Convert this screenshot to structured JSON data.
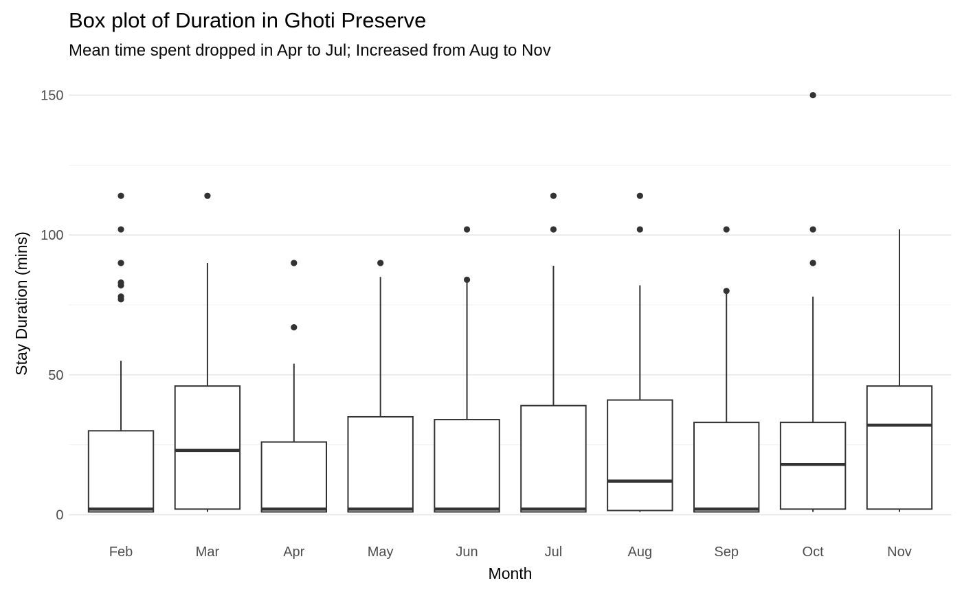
{
  "chart_data": {
    "type": "boxplot",
    "title": "Box plot of Duration in Ghoti Preserve",
    "subtitle": "Mean time spent dropped in Apr to Jul; Increased from Aug to Nov",
    "xlabel": "Month",
    "ylabel": "Stay Duration (mins)",
    "ylim": [
      0,
      150
    ],
    "y_major_ticks": [
      0,
      50,
      100,
      150
    ],
    "y_minor_gridlines": [
      25,
      75,
      125
    ],
    "grid": "on",
    "legend": "none",
    "categories": [
      "Feb",
      "Mar",
      "Apr",
      "May",
      "Jun",
      "Jul",
      "Aug",
      "Sep",
      "Oct",
      "Nov"
    ],
    "series": [
      {
        "month": "Feb",
        "whisker_low": 1,
        "q1": 1,
        "median": 2,
        "q3": 30,
        "whisker_high": 55,
        "outliers": [
          77,
          78,
          82,
          83,
          90,
          102,
          114
        ]
      },
      {
        "month": "Mar",
        "whisker_low": 1,
        "q1": 2,
        "median": 23,
        "q3": 46,
        "whisker_high": 90,
        "outliers": [
          114
        ]
      },
      {
        "month": "Apr",
        "whisker_low": 1,
        "q1": 1,
        "median": 2,
        "q3": 26,
        "whisker_high": 54,
        "outliers": [
          67,
          90
        ]
      },
      {
        "month": "May",
        "whisker_low": 1,
        "q1": 1,
        "median": 2,
        "q3": 35,
        "whisker_high": 85,
        "outliers": [
          90
        ]
      },
      {
        "month": "Jun",
        "whisker_low": 1,
        "q1": 1,
        "median": 2,
        "q3": 34,
        "whisker_high": 83,
        "outliers": [
          84,
          102
        ]
      },
      {
        "month": "Jul",
        "whisker_low": 1,
        "q1": 1,
        "median": 2,
        "q3": 39,
        "whisker_high": 89,
        "outliers": [
          102,
          114
        ]
      },
      {
        "month": "Aug",
        "whisker_low": 1,
        "q1": 1.5,
        "median": 12,
        "q3": 41,
        "whisker_high": 82,
        "outliers": [
          102,
          114
        ]
      },
      {
        "month": "Sep",
        "whisker_low": 1,
        "q1": 1,
        "median": 2,
        "q3": 33,
        "whisker_high": 79,
        "outliers": [
          80,
          102
        ]
      },
      {
        "month": "Oct",
        "whisker_low": 1,
        "q1": 2,
        "median": 18,
        "q3": 33,
        "whisker_high": 78,
        "outliers": [
          90,
          102,
          150
        ]
      },
      {
        "month": "Nov",
        "whisker_low": 1,
        "q1": 2,
        "median": 32,
        "q3": 46,
        "whisker_high": 102,
        "outliers": []
      }
    ],
    "colors": {
      "box_stroke": "#333333",
      "box_fill": "#ffffff",
      "outlier_fill": "#333333",
      "grid_major": "#e6e6e6",
      "grid_minor": "#efefef",
      "tick_label": "#4d4d4d",
      "background": "#ffffff"
    }
  }
}
